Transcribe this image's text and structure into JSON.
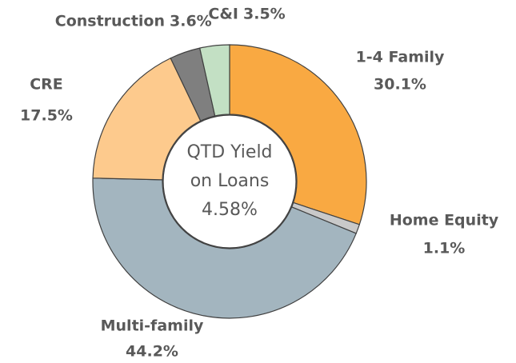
{
  "chart_data": {
    "type": "donut",
    "categories": [
      "1-4 Family",
      "Home Equity",
      "Multi-family",
      "CRE",
      "Construction",
      "C&I"
    ],
    "values": [
      30.1,
      1.1,
      44.2,
      17.5,
      3.6,
      3.5
    ],
    "value_labels": [
      "30.1%",
      "1.1%",
      "44.2%",
      "17.5%",
      "3.6%",
      "3.5%"
    ],
    "colors": [
      "#f9a942",
      "#c9c9c9",
      "#a3b5bf",
      "#fdca8d",
      "#7f7f7f",
      "#c3e0c4"
    ],
    "center_label": [
      "QTD Yield",
      "on Loans",
      "4.58%"
    ]
  }
}
